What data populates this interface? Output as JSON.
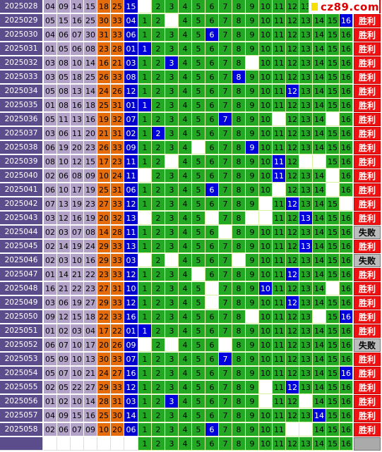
{
  "logo": {
    "text": "cz89.com"
  },
  "results": {
    "win": "胜利",
    "lose": "失败"
  },
  "rows": [
    {
      "period": "2025028",
      "nums": [
        "04",
        "09",
        "14",
        "15",
        "18",
        "25"
      ],
      "last": "15",
      "hit": 0,
      "miss": [
        1
      ],
      "res": "win"
    },
    {
      "period": "2025029",
      "nums": [
        "05",
        "15",
        "16",
        "25",
        "30",
        "33"
      ],
      "last": "04",
      "hit": 16,
      "miss": [
        3
      ],
      "res": "win"
    },
    {
      "period": "2025030",
      "nums": [
        "04",
        "06",
        "07",
        "30",
        "31",
        "33"
      ],
      "last": "06",
      "hit": 6,
      "miss": [],
      "res": "win"
    },
    {
      "period": "2025031",
      "nums": [
        "01",
        "05",
        "06",
        "08",
        "23",
        "28"
      ],
      "last": "01",
      "hit": 1,
      "miss": [],
      "res": "win"
    },
    {
      "period": "2025032",
      "nums": [
        "03",
        "08",
        "10",
        "14",
        "16",
        "21"
      ],
      "last": "03",
      "hit": 3,
      "miss": [
        9
      ],
      "res": "win"
    },
    {
      "period": "2025033",
      "nums": [
        "03",
        "05",
        "18",
        "25",
        "26",
        "33"
      ],
      "last": "08",
      "hit": 8,
      "miss": [],
      "res": "win"
    },
    {
      "period": "2025034",
      "nums": [
        "05",
        "08",
        "13",
        "14",
        "24",
        "26"
      ],
      "last": "12",
      "hit": 12,
      "miss": [],
      "res": "win"
    },
    {
      "period": "2025035",
      "nums": [
        "01",
        "08",
        "16",
        "18",
        "25",
        "31"
      ],
      "last": "01",
      "hit": 1,
      "miss": [],
      "res": "win"
    },
    {
      "period": "2025036",
      "nums": [
        "05",
        "11",
        "13",
        "16",
        "19",
        "32"
      ],
      "last": "07",
      "hit": 7,
      "miss": [
        11,
        15
      ],
      "res": "win"
    },
    {
      "period": "2025037",
      "nums": [
        "03",
        "06",
        "11",
        "20",
        "21",
        "31"
      ],
      "last": "02",
      "hit": 2,
      "miss": [],
      "res": "win"
    },
    {
      "period": "2025038",
      "nums": [
        "06",
        "19",
        "20",
        "23",
        "26",
        "33"
      ],
      "last": "09",
      "hit": 9,
      "miss": [
        5
      ],
      "res": "win"
    },
    {
      "period": "2025039",
      "nums": [
        "08",
        "10",
        "12",
        "15",
        "17",
        "23"
      ],
      "last": "11",
      "hit": 11,
      "miss": [
        3,
        13,
        14
      ],
      "res": "win"
    },
    {
      "period": "2025040",
      "nums": [
        "02",
        "06",
        "08",
        "09",
        "10",
        "24"
      ],
      "last": "11",
      "hit": 11,
      "miss": [
        1,
        15
      ],
      "res": "win"
    },
    {
      "period": "2025041",
      "nums": [
        "06",
        "10",
        "17",
        "19",
        "25",
        "31"
      ],
      "last": "06",
      "hit": 6,
      "miss": [
        11,
        15
      ],
      "res": "win"
    },
    {
      "period": "2025042",
      "nums": [
        "07",
        "13",
        "19",
        "23",
        "27",
        "33"
      ],
      "last": "12",
      "hit": 12,
      "miss": [
        10,
        16
      ],
      "res": "win"
    },
    {
      "period": "2025043",
      "nums": [
        "03",
        "12",
        "16",
        "19",
        "20",
        "32"
      ],
      "last": "13",
      "hit": 13,
      "miss": [
        1,
        6,
        9,
        10
      ],
      "res": "win"
    },
    {
      "period": "2025044",
      "nums": [
        "02",
        "03",
        "07",
        "08",
        "14",
        "28"
      ],
      "last": "11",
      "hit": 0,
      "miss": [
        7
      ],
      "res": "lose"
    },
    {
      "period": "2025045",
      "nums": [
        "02",
        "14",
        "19",
        "24",
        "29",
        "33"
      ],
      "last": "13",
      "hit": 13,
      "miss": [],
      "res": "win"
    },
    {
      "period": "2025046",
      "nums": [
        "02",
        "03",
        "10",
        "16",
        "29",
        "33"
      ],
      "last": "03",
      "hit": 0,
      "miss": [
        1,
        3,
        8
      ],
      "res": "lose"
    },
    {
      "period": "2025047",
      "nums": [
        "01",
        "14",
        "21",
        "22",
        "23",
        "33"
      ],
      "last": "12",
      "hit": 12,
      "miss": [
        5
      ],
      "res": "win"
    },
    {
      "period": "2025048",
      "nums": [
        "16",
        "21",
        "22",
        "23",
        "27",
        "31"
      ],
      "last": "10",
      "hit": 10,
      "miss": [
        6,
        15
      ],
      "res": "win"
    },
    {
      "period": "2025049",
      "nums": [
        "03",
        "06",
        "19",
        "27",
        "29",
        "33"
      ],
      "last": "12",
      "hit": 12,
      "miss": [
        6
      ],
      "res": "win"
    },
    {
      "period": "2025050",
      "nums": [
        "09",
        "12",
        "15",
        "18",
        "22",
        "33"
      ],
      "last": "16",
      "hit": 16,
      "miss": [
        9,
        14
      ],
      "res": "win"
    },
    {
      "period": "2025051",
      "nums": [
        "01",
        "02",
        "03",
        "04",
        "17",
        "22"
      ],
      "last": "01",
      "hit": 1,
      "miss": [],
      "res": "win"
    },
    {
      "period": "2025052",
      "nums": [
        "06",
        "07",
        "10",
        "17",
        "20",
        "26"
      ],
      "last": "09",
      "hit": 0,
      "miss": [
        1,
        3,
        7
      ],
      "res": "lose"
    },
    {
      "period": "2025053",
      "nums": [
        "05",
        "09",
        "10",
        "13",
        "30",
        "33"
      ],
      "last": "07",
      "hit": 7,
      "miss": [],
      "res": "win"
    },
    {
      "period": "2025054",
      "nums": [
        "05",
        "07",
        "10",
        "21",
        "24",
        "27"
      ],
      "last": "16",
      "hit": 16,
      "miss": [],
      "res": "win"
    },
    {
      "period": "2025055",
      "nums": [
        "02",
        "05",
        "22",
        "27",
        "29",
        "33"
      ],
      "last": "12",
      "hit": 12,
      "miss": [
        10
      ],
      "res": "win"
    },
    {
      "period": "2025056",
      "nums": [
        "01",
        "02",
        "10",
        "14",
        "28",
        "31"
      ],
      "last": "03",
      "hit": 3,
      "miss": [
        10,
        13
      ],
      "res": "win"
    },
    {
      "period": "2025057",
      "nums": [
        "04",
        "09",
        "15",
        "16",
        "25",
        "30"
      ],
      "last": "14",
      "hit": 14,
      "miss": [],
      "res": "win"
    },
    {
      "period": "2025058",
      "nums": [
        "02",
        "06",
        "07",
        "09",
        "10",
        "20"
      ],
      "last": "06",
      "hit": 6,
      "miss": [
        12,
        13
      ],
      "res": "win"
    }
  ],
  "last_row": {
    "miss": [
      1,
      2,
      3,
      4,
      5,
      6,
      7,
      8,
      9,
      10,
      11
    ]
  }
}
